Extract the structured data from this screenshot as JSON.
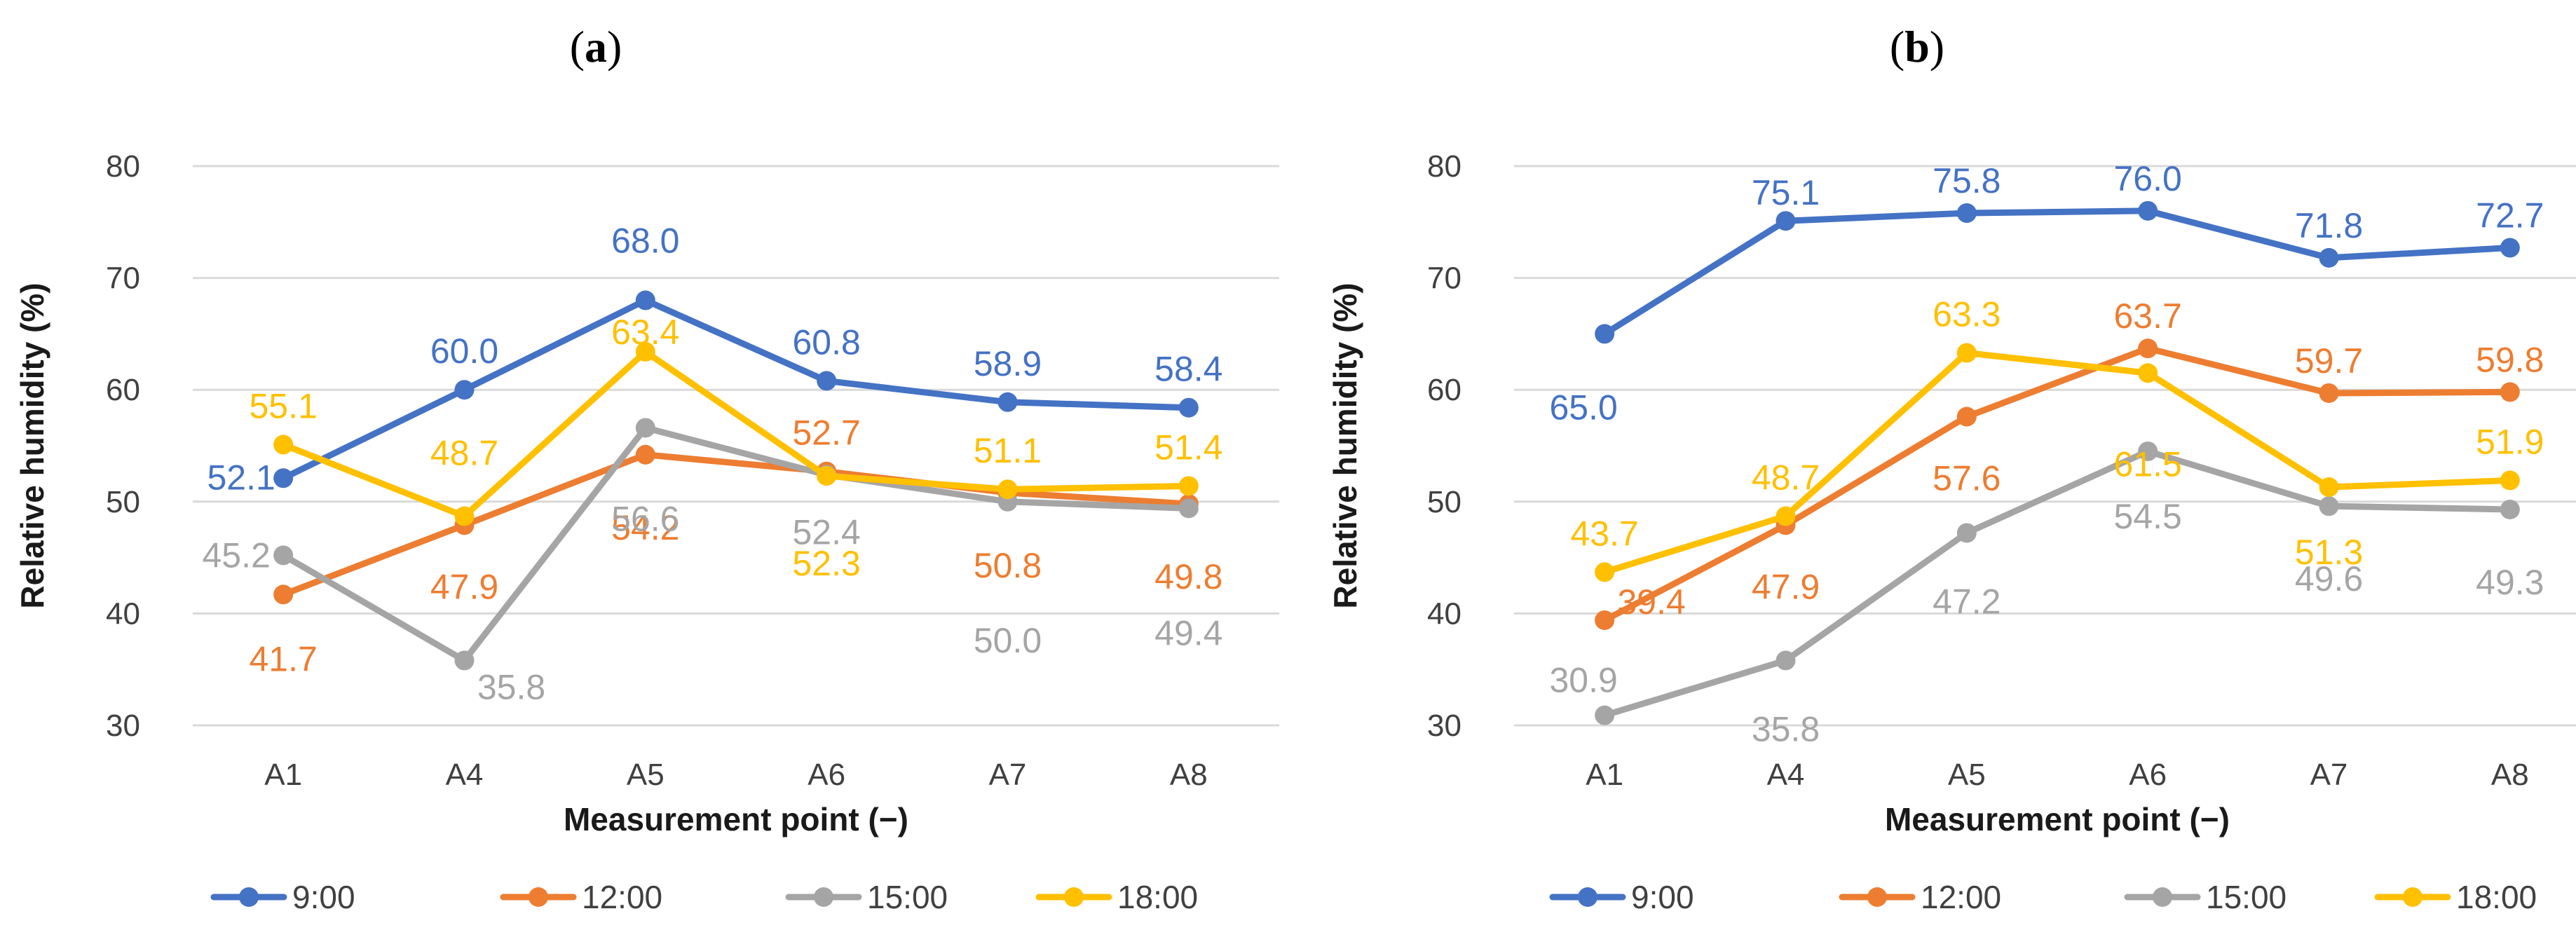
{
  "figure": {
    "panels": [
      {
        "label_open": "(",
        "label_letter": "a",
        "label_close": ")"
      },
      {
        "label_open": "(",
        "label_letter": "b",
        "label_close": ")"
      }
    ]
  },
  "chart_data": [
    {
      "type": "line",
      "panel": "(a)",
      "title": "",
      "xlabel": "Measurement point (−)",
      "ylabel": "Relative humidity (%)",
      "categories": [
        "A1",
        "A4",
        "A5",
        "A6",
        "A7",
        "A8"
      ],
      "ylim": [
        30,
        80
      ],
      "yticks": [
        30,
        40,
        50,
        60,
        70,
        80
      ],
      "grid": true,
      "legend": "bottom",
      "series": [
        {
          "name": "9:00",
          "color": "#4472C4",
          "values": [
            52.1,
            60.0,
            68.0,
            60.8,
            58.9,
            58.4
          ],
          "labels": [
            "52.1",
            "60.0",
            "68.0",
            "60.8",
            "58.9",
            "58.4"
          ]
        },
        {
          "name": "12:00",
          "color": "#ED7D31",
          "values": [
            41.7,
            47.9,
            54.2,
            52.7,
            50.8,
            49.8
          ],
          "labels": [
            "41.7",
            "47.9",
            "54.2",
            "52.7",
            "50.8",
            "49.8"
          ]
        },
        {
          "name": "15:00",
          "color": "#A5A5A5",
          "values": [
            45.2,
            35.8,
            56.6,
            52.4,
            50.0,
            49.4
          ],
          "labels": [
            "45.2",
            "35.8",
            "56.6",
            "52.4",
            "50.0",
            "49.4"
          ]
        },
        {
          "name": "18:00",
          "color": "#FFC000",
          "values": [
            55.1,
            48.7,
            63.4,
            52.3,
            51.1,
            51.4
          ],
          "labels": [
            "55.1",
            "48.7",
            "63.4",
            "52.3",
            "51.1",
            "51.4"
          ]
        }
      ]
    },
    {
      "type": "line",
      "panel": "(b)",
      "title": "",
      "xlabel": "Measurement point (−)",
      "ylabel": "Relative humidity (%)",
      "categories": [
        "A1",
        "A4",
        "A5",
        "A6",
        "A7",
        "A8"
      ],
      "ylim": [
        30,
        80
      ],
      "yticks": [
        30,
        40,
        50,
        60,
        70,
        80
      ],
      "grid": true,
      "legend": "bottom",
      "series": [
        {
          "name": "9:00",
          "color": "#4472C4",
          "values": [
            65.0,
            75.1,
            75.8,
            76.0,
            71.8,
            72.7
          ],
          "labels": [
            "65.0",
            "75.1",
            "75.8",
            "76.0",
            "71.8",
            "72.7"
          ]
        },
        {
          "name": "12:00",
          "color": "#ED7D31",
          "values": [
            39.4,
            47.9,
            57.6,
            63.7,
            59.7,
            59.8
          ],
          "labels": [
            "39.4",
            "47.9",
            "57.6",
            "63.7",
            "59.7",
            "59.8"
          ]
        },
        {
          "name": "15:00",
          "color": "#A5A5A5",
          "values": [
            30.9,
            35.8,
            47.2,
            54.5,
            49.6,
            49.3
          ],
          "labels": [
            "30.9",
            "35.8",
            "47.2",
            "54.5",
            "49.6",
            "49.3"
          ]
        },
        {
          "name": "18:00",
          "color": "#FFC000",
          "values": [
            43.7,
            48.7,
            63.3,
            61.5,
            51.3,
            51.9
          ],
          "labels": [
            "43.7",
            "48.7",
            "63.3",
            "61.5",
            "51.3",
            "51.9"
          ]
        }
      ]
    }
  ]
}
